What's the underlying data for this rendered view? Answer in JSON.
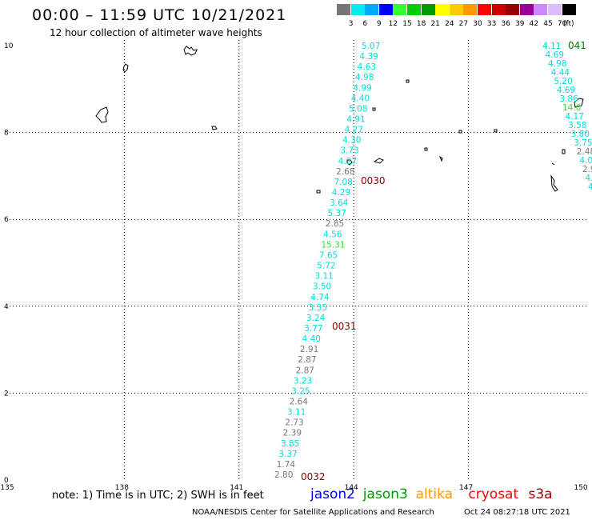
{
  "header": {
    "title": "00:00 – 11:59 UTC 10/21/2021",
    "subtitle": "12 hour collection of altimeter wave heights"
  },
  "legend": {
    "unit": "(ft)",
    "bins": [
      {
        "label": "3",
        "color": "#777777"
      },
      {
        "label": "6",
        "color": "#00eeee"
      },
      {
        "label": "9",
        "color": "#00aaff"
      },
      {
        "label": "12",
        "color": "#0000ff"
      },
      {
        "label": "15",
        "color": "#33ff33"
      },
      {
        "label": "18",
        "color": "#00cc00"
      },
      {
        "label": "21",
        "color": "#009900"
      },
      {
        "label": "24",
        "color": "#ffff00"
      },
      {
        "label": "27",
        "color": "#ffcc00"
      },
      {
        "label": "30",
        "color": "#ff9900"
      },
      {
        "label": "33",
        "color": "#ff0000"
      },
      {
        "label": "36",
        "color": "#cc0000"
      },
      {
        "label": "39",
        "color": "#990000"
      },
      {
        "label": "42",
        "color": "#990099"
      },
      {
        "label": "45",
        "color": "#cc88ff"
      },
      {
        "label": "70",
        "color": "#ddbbff"
      },
      {
        "label": "",
        "color": "#000000"
      }
    ]
  },
  "map": {
    "x_ticks": [
      "135",
      "138",
      "141",
      "144",
      "147",
      "150"
    ],
    "y_ticks": [
      "0",
      "2",
      "4",
      "6",
      "8",
      "10"
    ],
    "times": [
      {
        "label": "0030",
        "color": "#8b0000"
      },
      {
        "label": "0031",
        "color": "#8b0000"
      },
      {
        "label": "0032",
        "color": "#8b0000"
      },
      {
        "label": "041",
        "color": "#007700"
      }
    ],
    "track_main": [
      {
        "v": "5.07",
        "c": "#00dddd"
      },
      {
        "v": "4.39",
        "c": "#00dddd"
      },
      {
        "v": "4.63",
        "c": "#00dddd"
      },
      {
        "v": "4.98",
        "c": "#00dddd"
      },
      {
        "v": "4.99",
        "c": "#00dddd"
      },
      {
        "v": "4.40",
        "c": "#00dddd"
      },
      {
        "v": "5.08",
        "c": "#00dddd"
      },
      {
        "v": "4.91",
        "c": "#00dddd"
      },
      {
        "v": "4.27",
        "c": "#00dddd"
      },
      {
        "v": "4.30",
        "c": "#00dddd"
      },
      {
        "v": "3.73",
        "c": "#00dddd"
      },
      {
        "v": "4.27",
        "c": "#00dddd"
      },
      {
        "v": "2.68",
        "c": "#777777"
      },
      {
        "v": "7.08",
        "c": "#00dddd"
      },
      {
        "v": "4.29",
        "c": "#00dddd"
      },
      {
        "v": "3.64",
        "c": "#00dddd"
      },
      {
        "v": "5.37",
        "c": "#00dddd"
      },
      {
        "v": "2.85",
        "c": "#777777"
      },
      {
        "v": "4.56",
        "c": "#00dddd"
      },
      {
        "v": "15.31",
        "c": "#33dd33"
      },
      {
        "v": "7.65",
        "c": "#00dddd"
      },
      {
        "v": "5.72",
        "c": "#00dddd"
      },
      {
        "v": "3.11",
        "c": "#00dddd"
      },
      {
        "v": "3.50",
        "c": "#00dddd"
      },
      {
        "v": "4.74",
        "c": "#00dddd"
      },
      {
        "v": "3.35",
        "c": "#00dddd"
      },
      {
        "v": "3.24",
        "c": "#00dddd"
      },
      {
        "v": "3.77",
        "c": "#00dddd"
      },
      {
        "v": "4.40",
        "c": "#00dddd"
      },
      {
        "v": "2.91",
        "c": "#777777"
      },
      {
        "v": "2.87",
        "c": "#777777"
      },
      {
        "v": "2.87",
        "c": "#777777"
      },
      {
        "v": "3.23",
        "c": "#00dddd"
      },
      {
        "v": "3.25",
        "c": "#00dddd"
      },
      {
        "v": "2.64",
        "c": "#777777"
      },
      {
        "v": "3.11",
        "c": "#00dddd"
      },
      {
        "v": "2.73",
        "c": "#777777"
      },
      {
        "v": "2.39",
        "c": "#777777"
      },
      {
        "v": "3.85",
        "c": "#00dddd"
      },
      {
        "v": "3.37",
        "c": "#00dddd"
      },
      {
        "v": "1.74",
        "c": "#777777"
      },
      {
        "v": "2.80",
        "c": "#777777"
      }
    ],
    "track_right": [
      {
        "v": "4.11",
        "c": "#00dddd"
      },
      {
        "v": "4.69",
        "c": "#00dddd"
      },
      {
        "v": "4.98",
        "c": "#00dddd"
      },
      {
        "v": "4.44",
        "c": "#00dddd"
      },
      {
        "v": "5.20",
        "c": "#00dddd"
      },
      {
        "v": "4.69",
        "c": "#00dddd"
      },
      {
        "v": "3.86",
        "c": "#00dddd"
      },
      {
        "v": "14.0",
        "c": "#33dd33"
      },
      {
        "v": "4.17",
        "c": "#00dddd"
      },
      {
        "v": "3.58",
        "c": "#00dddd"
      },
      {
        "v": "3.80",
        "c": "#00dddd"
      },
      {
        "v": "3.75",
        "c": "#00dddd"
      },
      {
        "v": "2.48",
        "c": "#777777"
      },
      {
        "v": "4.0",
        "c": "#00dddd"
      },
      {
        "v": "2.9",
        "c": "#777777"
      },
      {
        "v": "4.",
        "c": "#00dddd"
      },
      {
        "v": "4",
        "c": "#00dddd"
      }
    ]
  },
  "footer": {
    "note": "note:  1) Time is in UTC;  2) SWH is in feet",
    "satellites": [
      {
        "name": "jason2",
        "color": "#0000ee"
      },
      {
        "name": "jason3",
        "color": "#009900"
      },
      {
        "name": "altika",
        "color": "#ff9900"
      },
      {
        "name": "cryosat",
        "color": "#ff0000"
      },
      {
        "name": "s3a",
        "color": "#990000"
      }
    ],
    "credit": "NOAA/NESDIS Center for Satellite Applications and Research",
    "timestamp": "Oct 24 08:27:18 UTC 2021"
  }
}
